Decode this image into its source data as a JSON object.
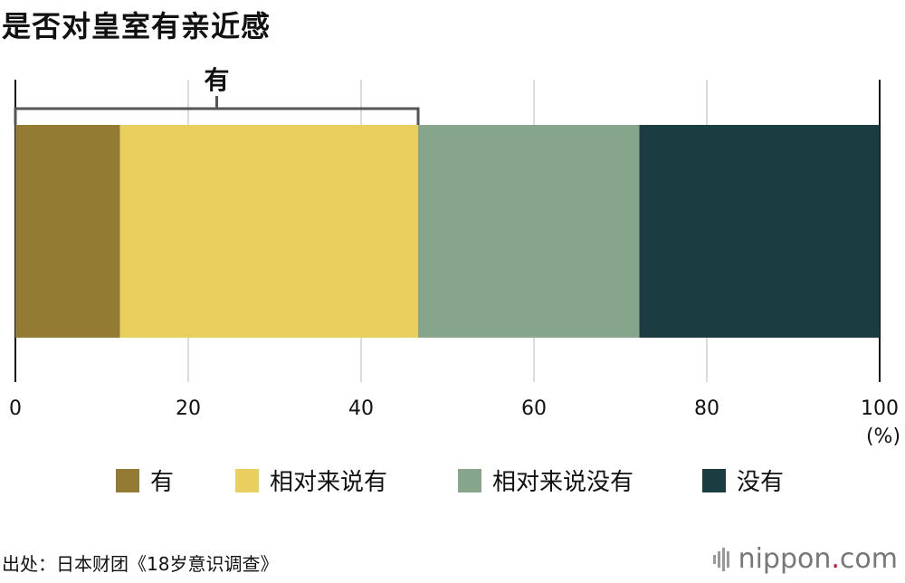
{
  "title": "是否对皇室有亲近感",
  "chart_data": {
    "type": "bar",
    "orientation": "horizontal-stacked-100",
    "x_axis": {
      "min": 0,
      "max": 100,
      "ticks": [
        0,
        20,
        40,
        60,
        80,
        100
      ],
      "unit_label": "(%)"
    },
    "grid": true,
    "segments": [
      {
        "name": "有",
        "value": 12.1,
        "color": "#937b34"
      },
      {
        "name": "相对来说有",
        "value": 34.5,
        "color": "#e8cf5e"
      },
      {
        "name": "相对来说没有",
        "value": 25.6,
        "color": "#87a58a"
      },
      {
        "name": "没有",
        "value": 27.8,
        "color": "#1b3d42"
      }
    ],
    "bracket": {
      "label": "有",
      "from": 0,
      "to": 46.6
    },
    "legend_position": "bottom"
  },
  "source": "出处：日本财团《18岁意识调查》",
  "brand": {
    "name": "nippon",
    "dot": ".",
    "tld": "com",
    "icon": "nippon-logo-icon"
  }
}
